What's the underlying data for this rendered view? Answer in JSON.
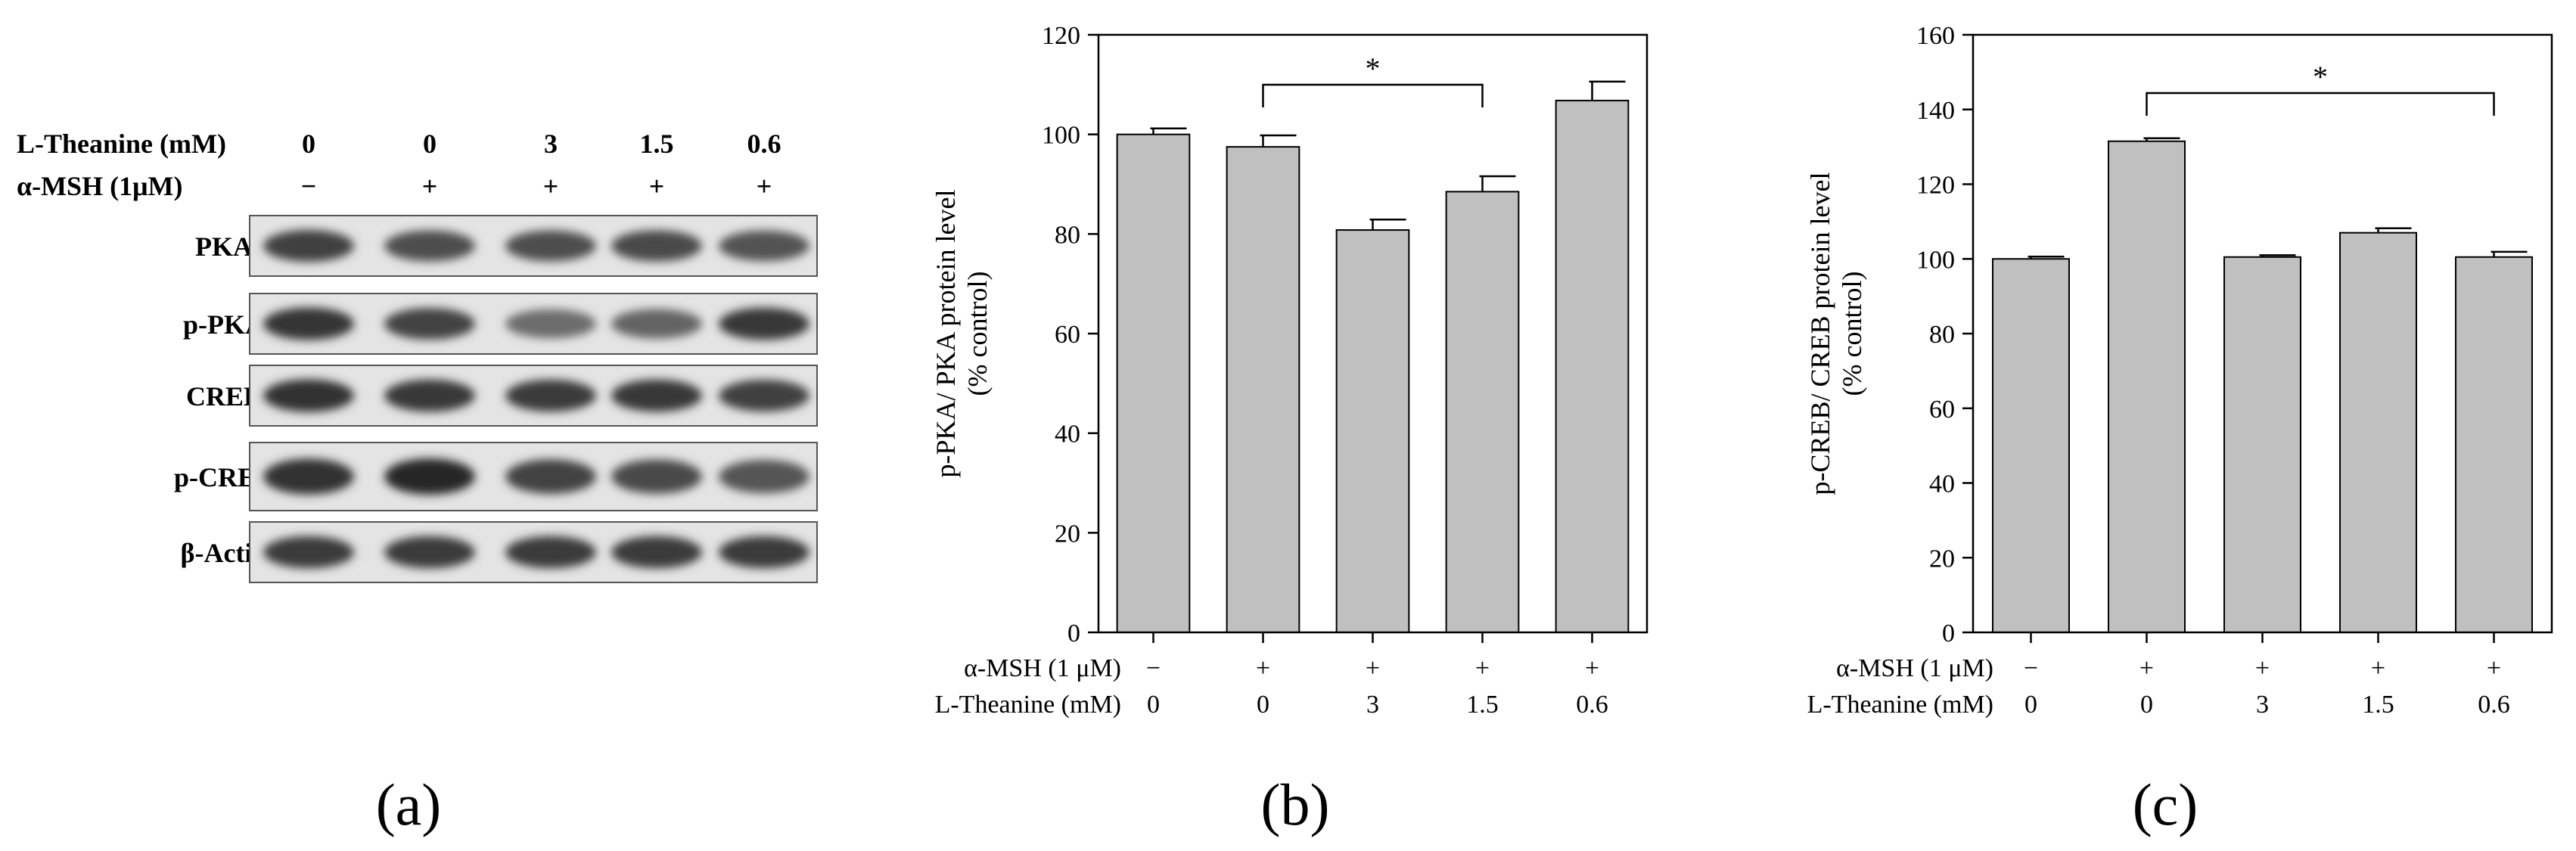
{
  "panels": {
    "a": "(a)",
    "b": "(b)",
    "c": "(c)"
  },
  "blot": {
    "header_rows": [
      {
        "label": "L-Theanine (mM)",
        "values": [
          "0",
          "0",
          "3",
          "1.5",
          "0.6"
        ]
      },
      {
        "label": "α-MSH (1μM)",
        "values": [
          "−",
          "+",
          "+",
          "+",
          "+"
        ]
      }
    ],
    "bands": [
      {
        "label": "PKA",
        "intensity": [
          0.85,
          0.75,
          0.75,
          0.78,
          0.72
        ]
      },
      {
        "label": "p-PKA",
        "intensity": [
          0.92,
          0.82,
          0.55,
          0.6,
          0.9
        ]
      },
      {
        "label": "CREB",
        "intensity": [
          0.95,
          0.9,
          0.88,
          0.9,
          0.85
        ]
      },
      {
        "label": "p-CREB",
        "intensity": [
          0.95,
          1.0,
          0.82,
          0.78,
          0.7
        ]
      },
      {
        "label": "β-Actin",
        "intensity": [
          0.88,
          0.88,
          0.88,
          0.88,
          0.88
        ]
      }
    ]
  },
  "chart_data": [
    {
      "type": "bar",
      "ylabel": [
        "p-PKA/ PKA protein level",
        "(% control)"
      ],
      "ylim": [
        0,
        120
      ],
      "yticks": [
        "0",
        "20",
        "40",
        "60",
        "80",
        "100",
        "120"
      ],
      "row_labels": [
        "α-MSH (1 μM)",
        "L-Theanine (mM)"
      ],
      "categories": [
        [
          "−",
          "0"
        ],
        [
          "+",
          "0"
        ],
        [
          "+",
          "3"
        ],
        [
          "+",
          "1.5"
        ],
        [
          "+",
          "0.6"
        ]
      ],
      "values": [
        100,
        97.5,
        80.8,
        88.5,
        106.8
      ],
      "errors": [
        1.2,
        2.3,
        2.1,
        3.1,
        3.8
      ],
      "bar_color": "#c0c0c0",
      "significance": {
        "from": 1,
        "to": 3,
        "label": "*"
      }
    },
    {
      "type": "bar",
      "ylabel": [
        "p-CREB/ CREB protein level",
        "(% control)"
      ],
      "ylim": [
        0,
        160
      ],
      "yticks": [
        "0",
        "20",
        "40",
        "60",
        "80",
        "100",
        "120",
        "140",
        "160"
      ],
      "row_labels": [
        "α-MSH (1 μM)",
        "L-Theanine (mM)"
      ],
      "categories": [
        [
          "−",
          "0"
        ],
        [
          "+",
          "0"
        ],
        [
          "+",
          "3"
        ],
        [
          "+",
          "1.5"
        ],
        [
          "+",
          "0.6"
        ]
      ],
      "values": [
        100,
        131.5,
        100.5,
        107,
        100.5
      ],
      "errors": [
        0.6,
        0.8,
        0.5,
        1.2,
        1.4
      ],
      "bar_color": "#c0c0c0",
      "significance": {
        "from": 1,
        "to": 4,
        "label": "*"
      }
    }
  ]
}
